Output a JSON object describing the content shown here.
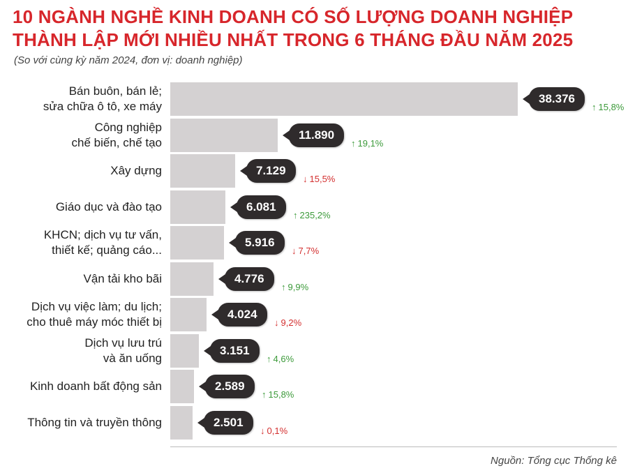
{
  "chart_data": {
    "type": "bar",
    "orientation": "horizontal",
    "title": "10 NGÀNH NGHỀ KINH DOANH CÓ SỐ LƯỢNG DOANH NGHIỆP THÀNH LẬP MỚI NHIỀU NHẤT TRONG 6 THÁNG ĐẦU NĂM 2025",
    "subtitle": "(So với cùng kỳ năm 2024, đơn vị: doanh nghiệp)",
    "source": "Nguồn: Tổng cục Thống kê",
    "categories": [
      "Bán buôn, bán lẻ;\nsửa chữa ô tô, xe máy",
      "Công nghiệp\nchế biến, chế tạo",
      "Xây dựng",
      "Giáo dục và đào tạo",
      "KHCN; dịch vụ tư vấn,\nthiết kế; quảng cáo...",
      "Vận tải kho bãi",
      "Dịch vụ việc làm; du lịch;\ncho thuê máy móc thiết bị",
      "Dịch vụ lưu trú\nvà ăn uống",
      "Kinh doanh bất động sản",
      "Thông tin và truyền thông"
    ],
    "values": [
      38376,
      11890,
      7129,
      6081,
      5916,
      4776,
      4024,
      3151,
      2589,
      2501
    ],
    "value_labels": [
      "38.376",
      "11.890",
      "7.129",
      "6.081",
      "5.916",
      "4.776",
      "4.024",
      "3.151",
      "2.589",
      "2.501"
    ],
    "changes": [
      "15,8%",
      "19,1%",
      "15,5%",
      "235,2%",
      "7,7%",
      "9,9%",
      "9,2%",
      "4,6%",
      "15,8%",
      "0,1%"
    ],
    "change_direction": [
      "up",
      "up",
      "down",
      "up",
      "down",
      "up",
      "down",
      "up",
      "up",
      "down"
    ],
    "xlim": [
      0,
      38376
    ],
    "grid": false,
    "colors": {
      "bar": "#d4d1d2",
      "bubble": "#2f2b2c",
      "title": "#d7262b",
      "up": "#3c9a3a",
      "down": "#d32f2f"
    }
  }
}
